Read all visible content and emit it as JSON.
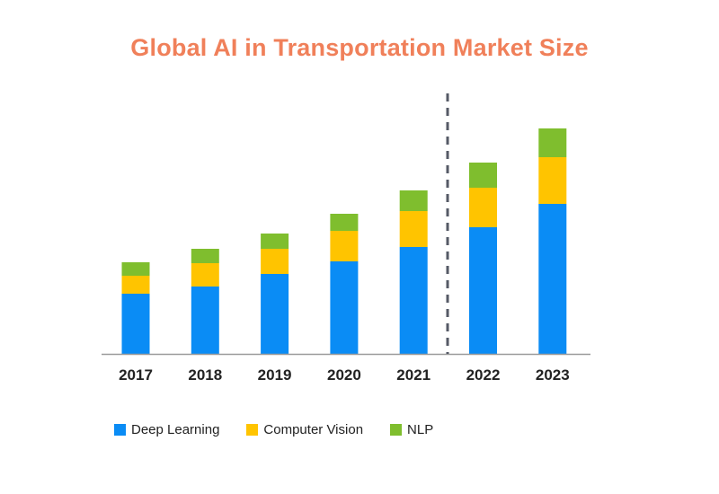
{
  "chart_data": {
    "type": "stacked-bar",
    "title": "Global AI in Transportation Market Size",
    "categories": [
      "2017",
      "2018",
      "2019",
      "2020",
      "2021",
      "2022",
      "2023"
    ],
    "series": [
      {
        "name": "Deep Learning",
        "color": "#0a8cf5",
        "values": [
          67,
          75,
          89,
          103,
          119,
          141,
          167
        ]
      },
      {
        "name": "Computer Vision",
        "color": "#ffc400",
        "values": [
          20,
          26,
          28,
          34,
          40,
          44,
          52
        ]
      },
      {
        "name": "NLP",
        "color": "#7fbe2e",
        "values": [
          15,
          16,
          17,
          19,
          23,
          28,
          32
        ]
      }
    ],
    "forecast_divider_between": [
      "2021",
      "2022"
    ],
    "ylim": [
      0,
      260
    ],
    "grid": false,
    "legend_position": "bottom-left"
  }
}
